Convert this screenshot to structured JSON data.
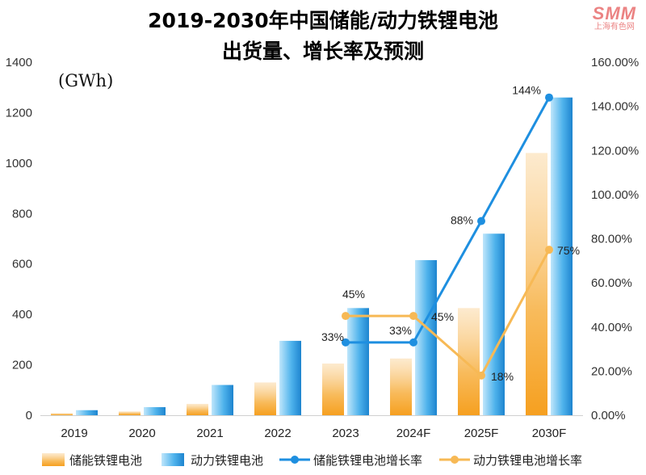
{
  "title_line1": "2019-2030年中国储能/动力铁锂电池",
  "title_line2": "出货量、增长率及预测",
  "unit_label": "(GWh)",
  "watermark": {
    "logo": "SMM",
    "text": "上海有色网"
  },
  "colors": {
    "storage_bar": "#f6a623",
    "power_bar": "#2f9be0",
    "storage_line": "#1e8fe0",
    "power_line": "#f7b955"
  },
  "chart_data": {
    "type": "bar",
    "categories": [
      "2019",
      "2020",
      "2021",
      "2022",
      "2023",
      "2024F",
      "2025F",
      "2030F"
    ],
    "y_left": {
      "ticks": [
        "0",
        "200",
        "400",
        "600",
        "800",
        "1000",
        "1200",
        "1400"
      ],
      "ylim": [
        0,
        1400
      ]
    },
    "y_right": {
      "ticks": [
        "0.00%",
        "20.00%",
        "40.00%",
        "60.00%",
        "80.00%",
        "100.00%",
        "120.00%",
        "140.00%",
        "160.00%"
      ],
      "ylim": [
        0,
        160
      ]
    },
    "series": [
      {
        "name": "储能铁锂电池",
        "kind": "bar",
        "axis": "left",
        "values": [
          8,
          15,
          45,
          130,
          205,
          225,
          425,
          1040
        ]
      },
      {
        "name": "动力铁锂电池",
        "kind": "bar",
        "axis": "left",
        "values": [
          20,
          32,
          120,
          295,
          425,
          615,
          720,
          1260
        ]
      },
      {
        "name": "储能铁锂电池增长率",
        "kind": "line",
        "axis": "right",
        "x": [
          "2023",
          "2024F",
          "2025F",
          "2030F"
        ],
        "values": [
          33,
          33,
          88,
          144
        ],
        "labels": [
          "33%",
          "33%",
          "88%",
          "144%"
        ]
      },
      {
        "name": "动力铁锂电池增长率",
        "kind": "line",
        "axis": "right",
        "x": [
          "2023",
          "2024F",
          "2025F",
          "2030F"
        ],
        "values": [
          45,
          45,
          18,
          75
        ],
        "labels": [
          "45%",
          "45%",
          "18%",
          "75%"
        ]
      }
    ],
    "legend_position": "bottom",
    "grid": false
  }
}
